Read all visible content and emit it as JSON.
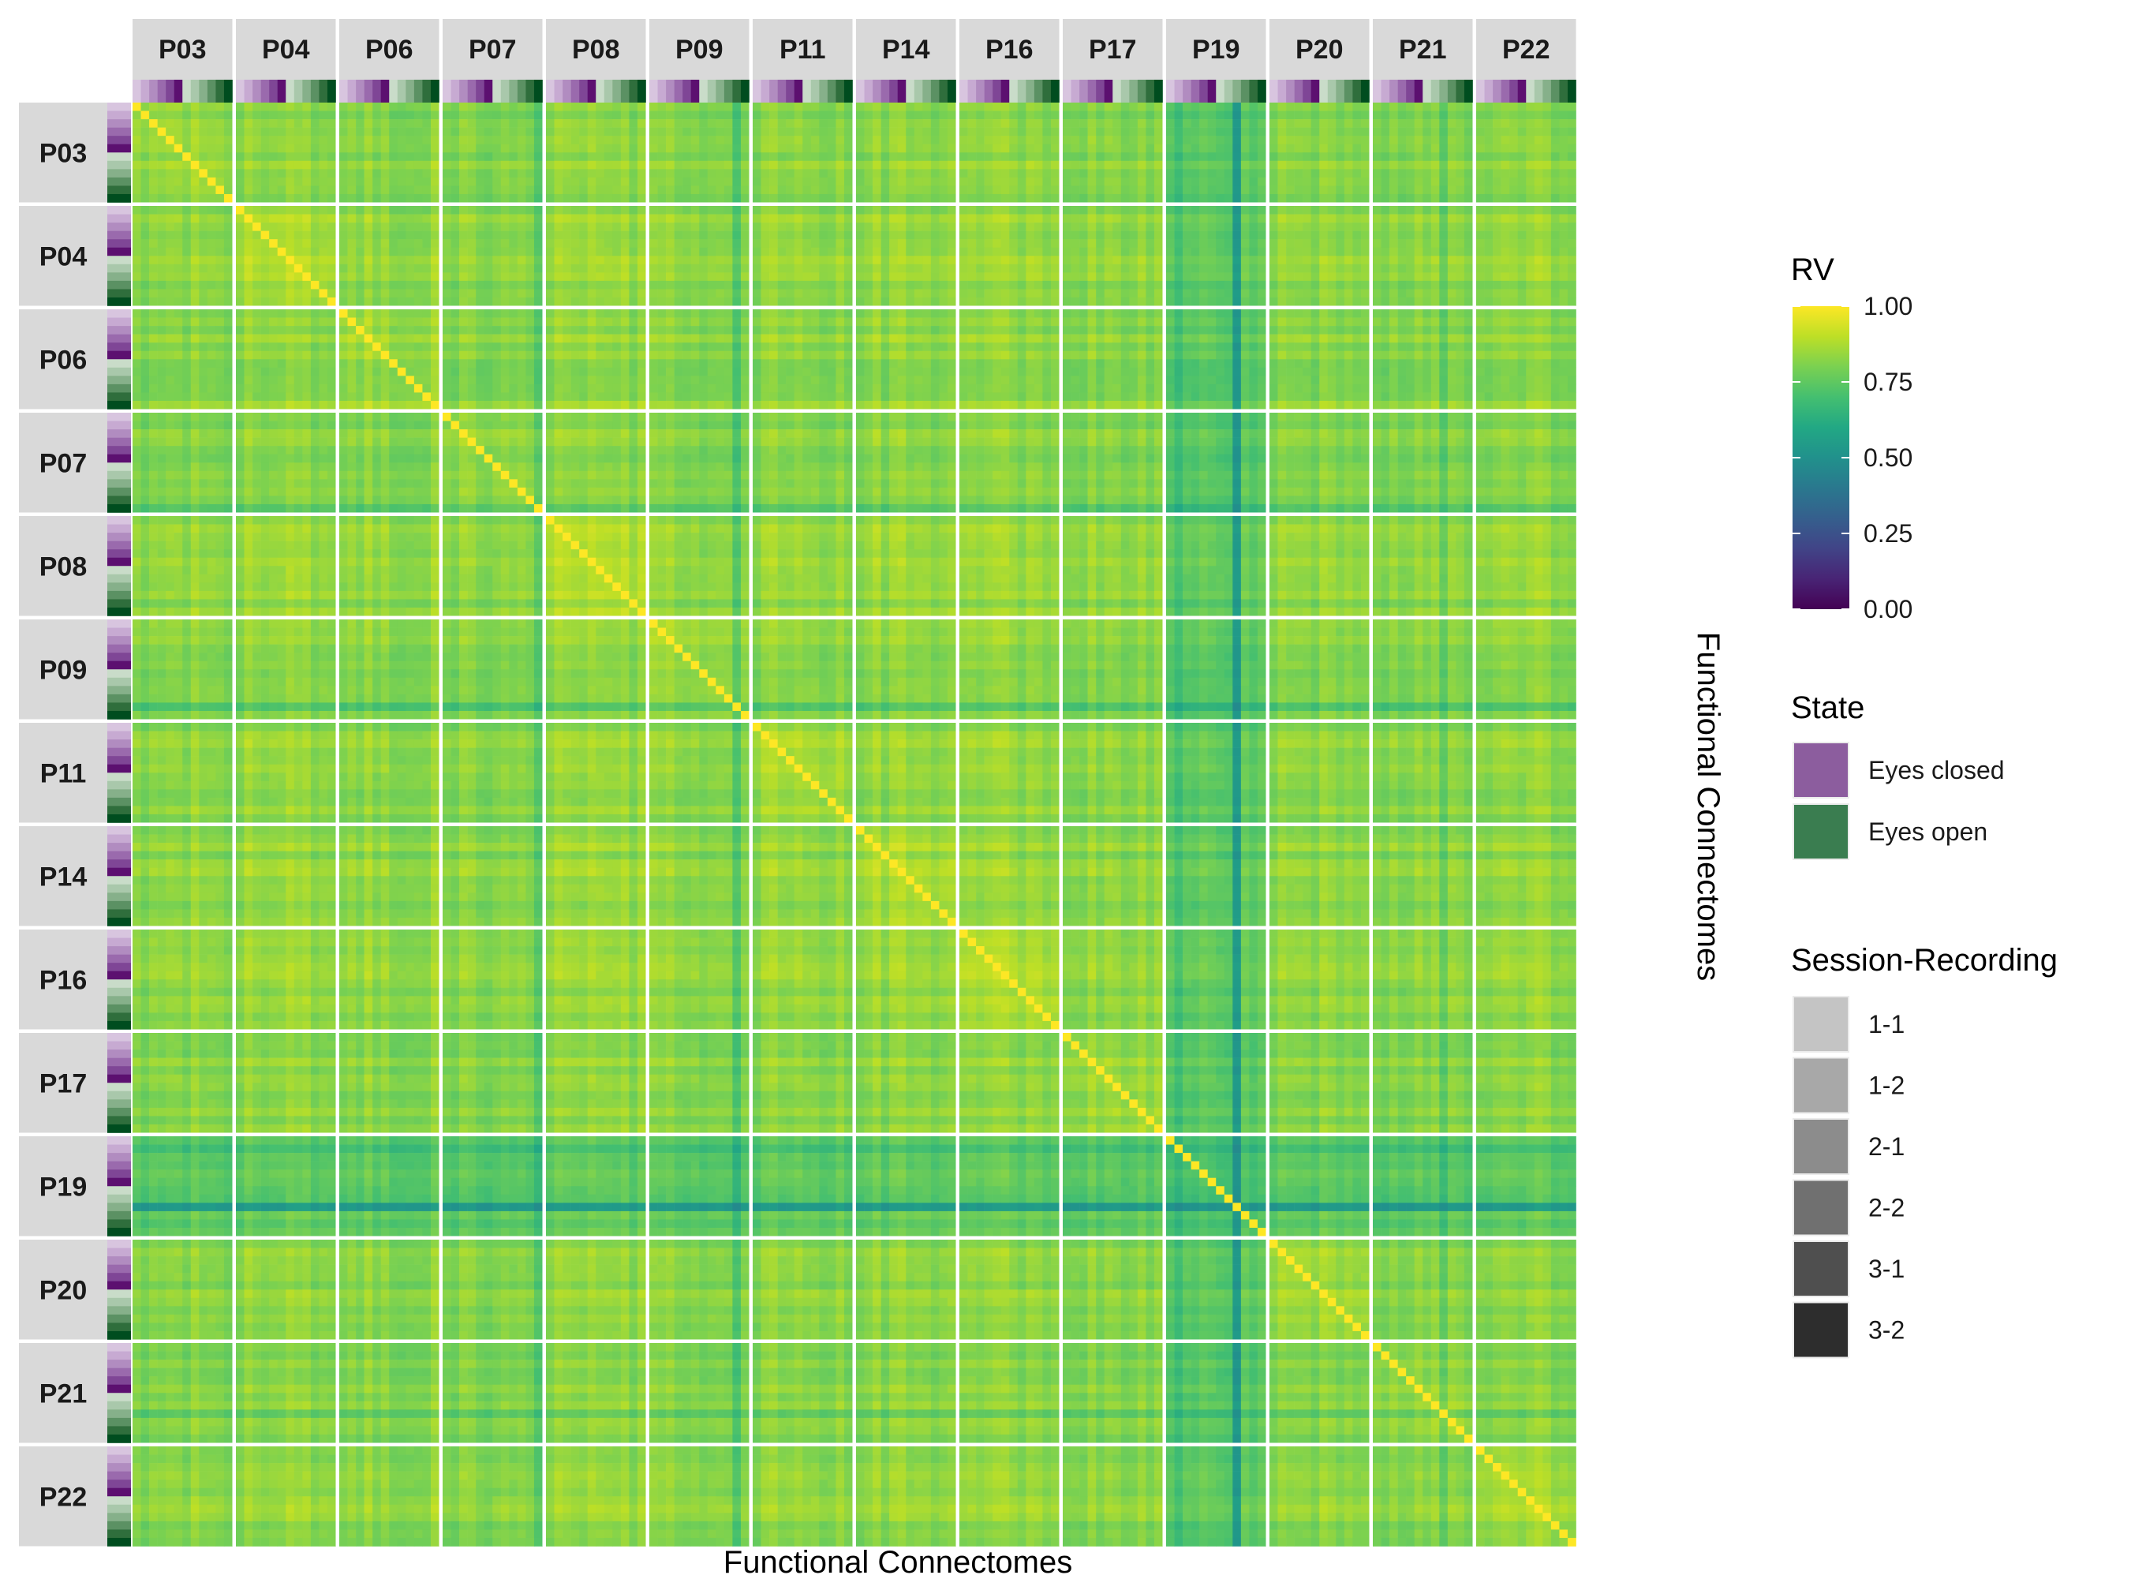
{
  "chart_data": {
    "type": "heatmap",
    "x_title": "Functional Connectomes",
    "y_title": "Functional Connectomes",
    "participants": [
      "P03",
      "P04",
      "P06",
      "P07",
      "P08",
      "P09",
      "P11",
      "P14",
      "P16",
      "P17",
      "P19",
      "P20",
      "P21",
      "P22"
    ],
    "cells_per_participant": 12,
    "states": [
      "Eyes closed",
      "Eyes open"
    ],
    "session_recordings": [
      "1-1",
      "1-2",
      "2-1",
      "2-2",
      "3-1",
      "3-2"
    ],
    "cell_order": "state-major: 6 eyes-closed recordings (1-1 … 3-2) then 6 eyes-open recordings (1-1 … 3-2)",
    "value_scale": {
      "name": "RV",
      "min": 0,
      "max": 1,
      "ticks": [
        "1.00",
        "0.75",
        "0.50",
        "0.25",
        "0.00"
      ],
      "palette": "viridis"
    },
    "summary": {
      "diagonal": 1.0,
      "typical_between_recordings": 0.83,
      "typical_range": [
        0.7,
        0.9
      ],
      "low_participant": "P19",
      "low_participant_typical": 0.74,
      "min_value_approx": 0.55,
      "min_region": "P19 eyes-open recording 2-1 (row 11 of block) against all connectomes",
      "other_low_recordings": [
        "P09 eyes-open 3-1",
        "P07 eyes-open 3-2",
        "P21 eyes-open 2-1"
      ]
    },
    "grid": false,
    "legend_position": "right"
  },
  "legends": {
    "rv": {
      "title": "RV",
      "ticks": [
        "1.00",
        "0.75",
        "0.50",
        "0.25",
        "0.00"
      ]
    },
    "state": {
      "title": "State",
      "items": [
        {
          "label": "Eyes closed",
          "color": "#8c5d9e"
        },
        {
          "label": "Eyes open",
          "color": "#3a7d50"
        }
      ]
    },
    "session": {
      "title": "Session-Recording",
      "items": [
        {
          "label": "1-1",
          "color": "#c4c4c4"
        },
        {
          "label": "1-2",
          "color": "#a8a8a8"
        },
        {
          "label": "2-1",
          "color": "#8c8c8c"
        },
        {
          "label": "2-2",
          "color": "#707070"
        },
        {
          "label": "3-1",
          "color": "#4f4f4f"
        },
        {
          "label": "3-2",
          "color": "#2d2d2d"
        }
      ]
    }
  },
  "colors": {
    "strip_background": "#d9d9d9",
    "panel_separator": "#ffffff",
    "eyes_closed_shades": [
      "#d8c5df",
      "#c7aad2",
      "#b18cc0",
      "#9a6aad",
      "#7f4696",
      "#5c1070"
    ],
    "eyes_open_shades": [
      "#c9dcc9",
      "#a9c8ab",
      "#86b08a",
      "#5b9163",
      "#2f6e3c",
      "#004d1f"
    ]
  }
}
